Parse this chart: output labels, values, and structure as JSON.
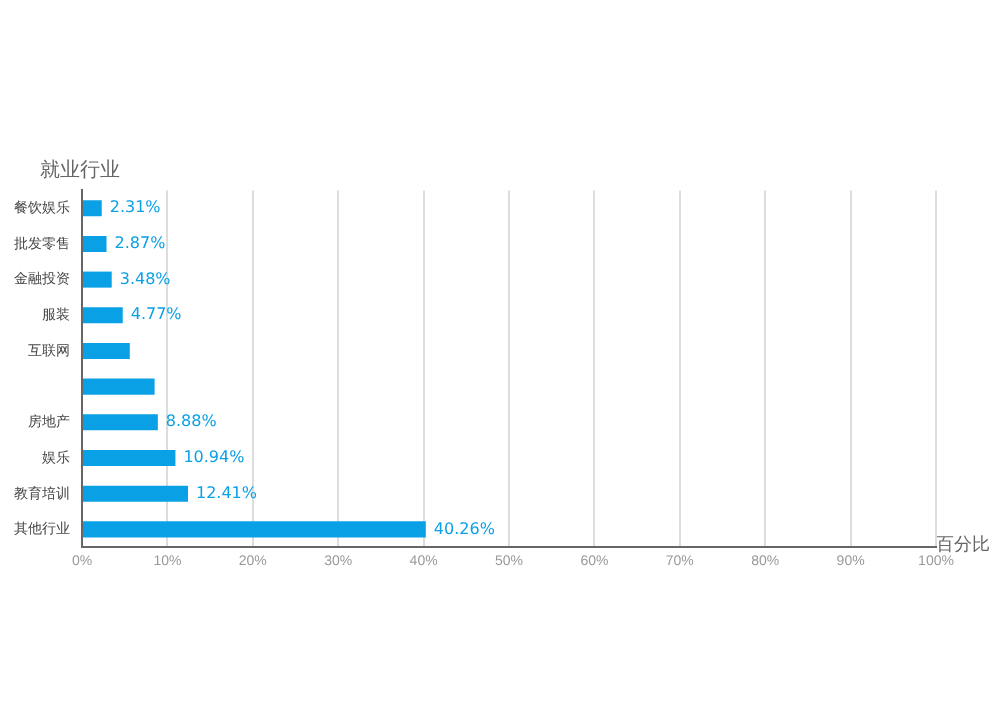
{
  "chart_data": {
    "type": "bar",
    "orientation": "horizontal",
    "ylabel": "就业行业",
    "xlabel": "百分比",
    "categories": [
      "餐饮娱乐",
      "批发零售",
      "金融投资",
      "服装",
      "互联网",
      null,
      "房地产",
      "娱乐",
      "教育培训",
      "其他行业"
    ],
    "values": [
      2.31,
      2.87,
      3.48,
      4.77,
      5.6,
      8.5,
      8.88,
      10.94,
      12.41,
      40.26
    ],
    "value_labels": [
      "2.31%",
      "2.87%",
      "3.48%",
      "4.77%",
      null,
      null,
      "8.88%",
      "10.94%",
      "12.41%",
      "40.26%"
    ],
    "color": "#0aa0e6",
    "xlim": [
      0,
      100
    ],
    "xticks": [
      {
        "value": 0,
        "label": "0%"
      },
      {
        "value": 10,
        "label": "10%"
      },
      {
        "value": 20,
        "label": "20%"
      },
      {
        "value": 30,
        "label": "30%"
      },
      {
        "value": 40,
        "label": "40%"
      },
      {
        "value": 50,
        "label": "50%"
      },
      {
        "value": 60,
        "label": "60%"
      },
      {
        "value": 70,
        "label": "70%"
      },
      {
        "value": 80,
        "label": "80%"
      },
      {
        "value": 90,
        "label": "90%"
      },
      {
        "value": 100,
        "label": "100%"
      }
    ],
    "grid": "x",
    "legend": false
  }
}
